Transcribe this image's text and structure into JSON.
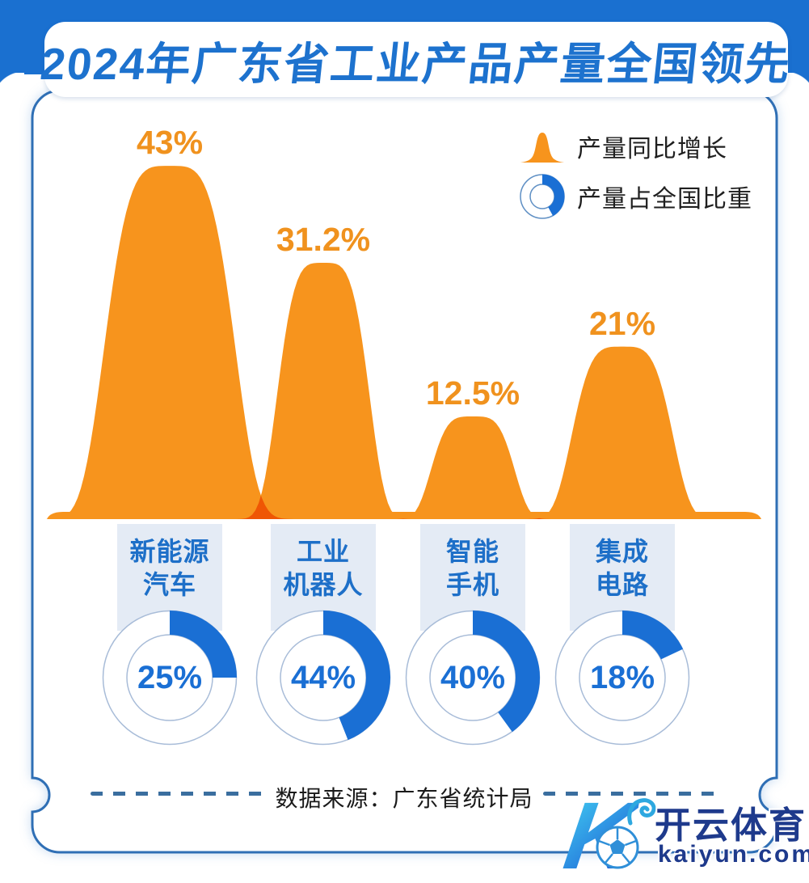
{
  "title": "2024年广东省工业产品产量全国领先",
  "legend": {
    "items": [
      {
        "icon": "bell-curve-icon",
        "label": "产量同比增长"
      },
      {
        "icon": "donut-chart-icon",
        "label": "产量占全国比重"
      }
    ]
  },
  "chart_data": {
    "type": "area",
    "subtype": "bell-bumps-with-donuts",
    "categories": [
      "新能源汽车",
      "工业机器人",
      "智能手机",
      "集成电路"
    ],
    "category_lines": [
      [
        "新能源",
        "汽车"
      ],
      [
        "工业",
        "机器人"
      ],
      [
        "智能",
        "手机"
      ],
      [
        "集成",
        "电路"
      ]
    ],
    "series": [
      {
        "name": "产量同比增长",
        "type": "bump-area",
        "unit": "%",
        "values": [
          43,
          31.2,
          12.5,
          21
        ],
        "labels": [
          "43%",
          "31.2%",
          "12.5%",
          "21%"
        ]
      },
      {
        "name": "产量占全国比重",
        "type": "donut",
        "unit": "%",
        "values": [
          25,
          44,
          40,
          18
        ],
        "labels": [
          "25%",
          "44%",
          "40%",
          "18%"
        ]
      }
    ],
    "ylim": [
      0,
      50
    ],
    "grid": false,
    "legend_position": "top-right"
  },
  "footer": {
    "source": "数据来源：广东省统计局"
  },
  "watermark": {
    "monogram": "K",
    "brand": "开云体育",
    "domain": "kaiyun.com"
  },
  "colors": {
    "orange": "#F7941D",
    "overlap_orange": "#E8520E",
    "band_blue": "#1A70D0",
    "title_blue": "#1D72CE",
    "card_border": "#2F6FB5",
    "category_blue": "#1D6FC8",
    "donut_blue": "#1A6FD4",
    "donut_outline": "#A8BCD8",
    "column_bg": "#E4EBF5",
    "footer_dash": "#3A6E9F",
    "watermark_navy": "#1E3A8C"
  }
}
